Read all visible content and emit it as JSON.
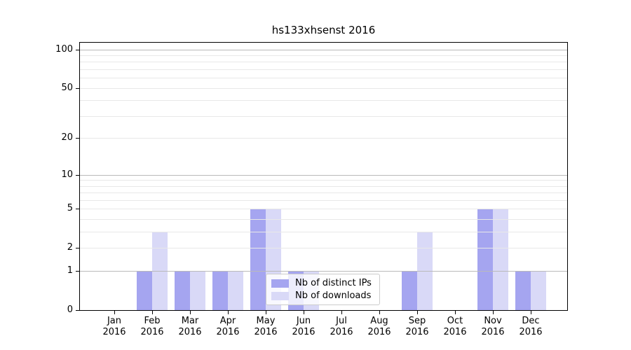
{
  "figure": {
    "title": "hs133xhsenst 2016"
  },
  "chart_data": {
    "type": "bar",
    "title": "hs133xhsenst 2016",
    "xlabel": "",
    "ylabel": "",
    "y_scale": "log1p",
    "ylim": [
      0,
      115
    ],
    "grid": "on",
    "categories": [
      [
        "Jan",
        "2016"
      ],
      [
        "Feb",
        "2016"
      ],
      [
        "Mar",
        "2016"
      ],
      [
        "Apr",
        "2016"
      ],
      [
        "May",
        "2016"
      ],
      [
        "Jun",
        "2016"
      ],
      [
        "Jul",
        "2016"
      ],
      [
        "Aug",
        "2016"
      ],
      [
        "Sep",
        "2016"
      ],
      [
        "Oct",
        "2016"
      ],
      [
        "Nov",
        "2016"
      ],
      [
        "Dec",
        "2016"
      ]
    ],
    "series": [
      {
        "name": "Nb of distinct IPs",
        "color": "#a5a5f0",
        "values": [
          0,
          1,
          1,
          1,
          5,
          1,
          0,
          0,
          1,
          0,
          5,
          1
        ]
      },
      {
        "name": "Nb of downloads",
        "color": "#d9d9f7",
        "values": [
          0,
          3,
          1,
          1,
          5,
          1,
          0,
          0,
          3,
          0,
          5,
          1
        ]
      }
    ],
    "y_ticks": [
      0,
      1,
      2,
      5,
      10,
      20,
      50,
      100
    ],
    "y_grid_major": [
      1,
      10,
      100
    ],
    "y_grid_minor": [
      2,
      3,
      4,
      5,
      6,
      7,
      8,
      9,
      20,
      30,
      40,
      50,
      60,
      70,
      80,
      90
    ],
    "legend": {
      "position": "lower center",
      "items": [
        "Nb of distinct IPs",
        "Nb of downloads"
      ]
    }
  },
  "colors": {
    "background": "#ffffff",
    "spine": "#000000",
    "grid_major": "#bababa",
    "grid_minor": "#e8e8e8",
    "tick_label": "#000000",
    "legend_border": "#cccccc",
    "legend_background": "rgba(255,255,255,0.8)"
  }
}
